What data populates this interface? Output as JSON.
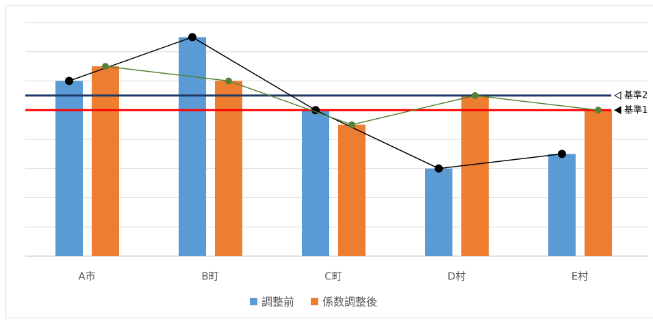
{
  "chart_data": {
    "type": "bar",
    "categories": [
      "A市",
      "B町",
      "C町",
      "D村",
      "E村"
    ],
    "series": [
      {
        "name": "調整前",
        "color": "#5b9bd5",
        "line_color": "#000000",
        "values": [
          6,
          7.5,
          5,
          3,
          3.5
        ]
      },
      {
        "name": "係数調整後",
        "color": "#ed7d31",
        "line_color": "#548235",
        "values": [
          6.5,
          6,
          4.5,
          5.5,
          5
        ]
      }
    ],
    "references": [
      {
        "label": "基準2",
        "value": 5.5,
        "color": "#203864",
        "marker": "open"
      },
      {
        "label": "基準1",
        "value": 5,
        "color": "#ff0000",
        "marker": "filled"
      }
    ],
    "ylim": [
      0,
      8
    ],
    "yticks": [
      0,
      1,
      2,
      3,
      4,
      5,
      6,
      7,
      8
    ],
    "grid": true,
    "legend": "bottom"
  }
}
